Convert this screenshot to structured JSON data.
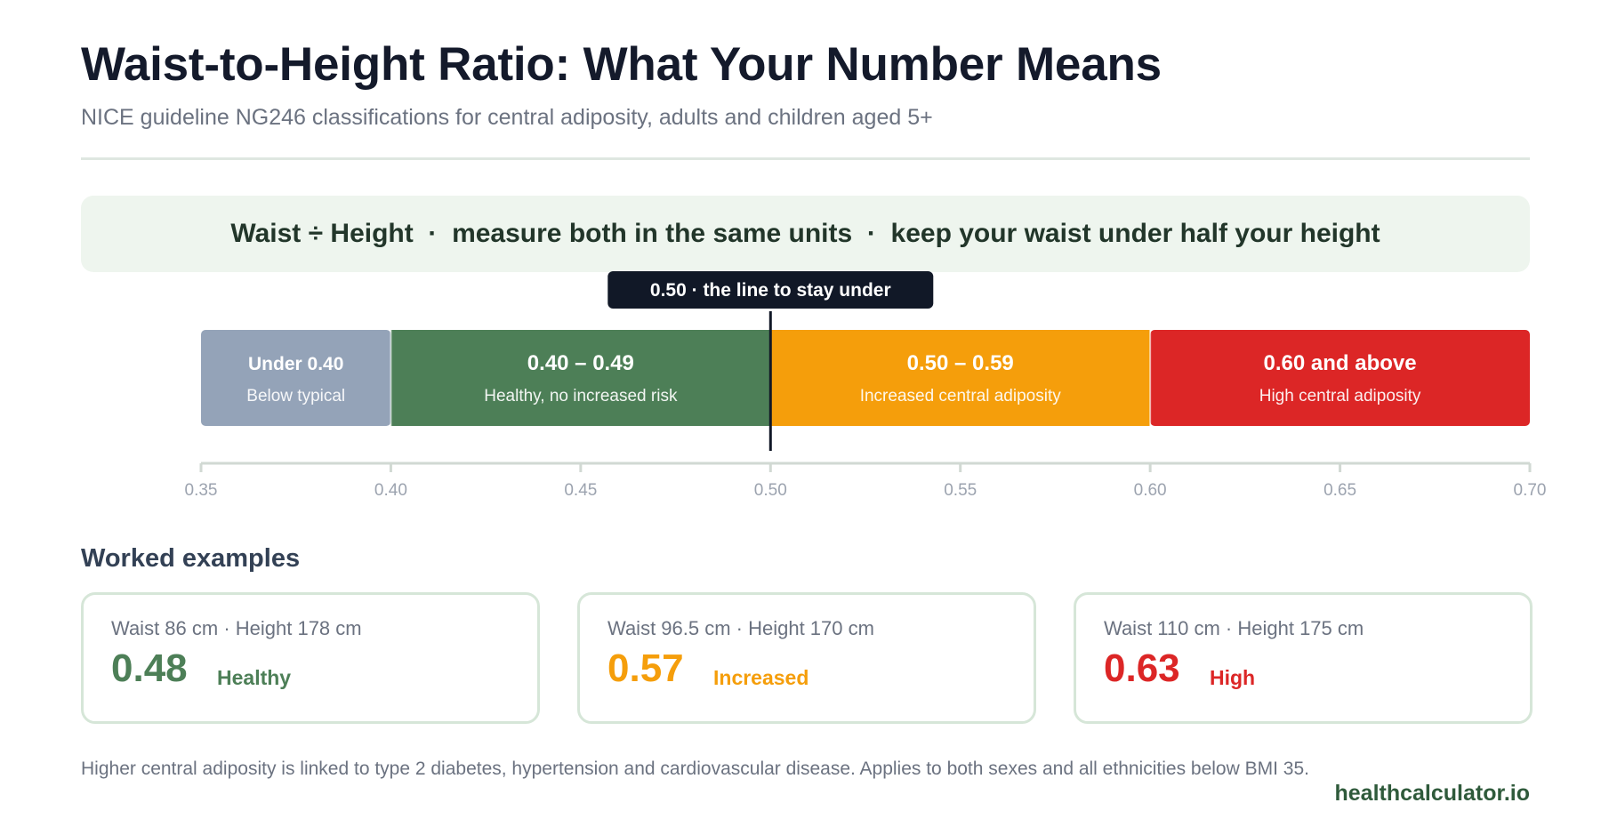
{
  "header": {
    "title": "Waist-to-Height Ratio: What Your Number Means",
    "subtitle": "NICE guideline NG246 classifications for central adiposity, adults and children aged 5+"
  },
  "formula_banner": "Waist ÷ Height  ·  measure both in the same units  ·  keep your waist under half your height",
  "chart_data": {
    "type": "bar",
    "orientation": "horizontal-segmented",
    "xlim": [
      0.35,
      0.7
    ],
    "ticks": [
      "0.35",
      "0.40",
      "0.45",
      "0.50",
      "0.55",
      "0.60",
      "0.65",
      "0.70"
    ],
    "tick_values": [
      0.35,
      0.4,
      0.45,
      0.5,
      0.55,
      0.6,
      0.65,
      0.7
    ],
    "segments": [
      {
        "start": 0.35,
        "end": 0.4,
        "label": "Under 0.40",
        "description": "Below typical",
        "color": "#94a3b8"
      },
      {
        "start": 0.4,
        "end": 0.5,
        "label": "0.40 – 0.49",
        "description": "Healthy, no increased risk",
        "color": "#4d7f57"
      },
      {
        "start": 0.5,
        "end": 0.6,
        "label": "0.50 – 0.59",
        "description": "Increased central adiposity",
        "color": "#f59e0b"
      },
      {
        "start": 0.6,
        "end": 0.7,
        "label": "0.60 and above",
        "description": "High central adiposity",
        "color": "#dc2626"
      }
    ],
    "threshold": {
      "value": 0.5,
      "label": "0.50 · the line to stay under",
      "color": "#111827"
    }
  },
  "examples": {
    "title": "Worked examples",
    "cards": [
      {
        "inputs": "Waist 86 cm · Height 178 cm",
        "ratio": "0.48",
        "label": "Healthy",
        "color": "#4d7f57"
      },
      {
        "inputs": "Waist 96.5 cm · Height 170 cm",
        "ratio": "0.57",
        "label": "Increased",
        "color": "#f59e0b"
      },
      {
        "inputs": "Waist 110 cm · Height 175 cm",
        "ratio": "0.63",
        "label": "High",
        "color": "#dc2626"
      }
    ]
  },
  "footnote": "Higher central adiposity is linked to type 2 diabetes, hypertension and cardiovascular disease. Applies to both sexes and all ethnicities below BMI 35.",
  "brand": "healthcalculator.io"
}
